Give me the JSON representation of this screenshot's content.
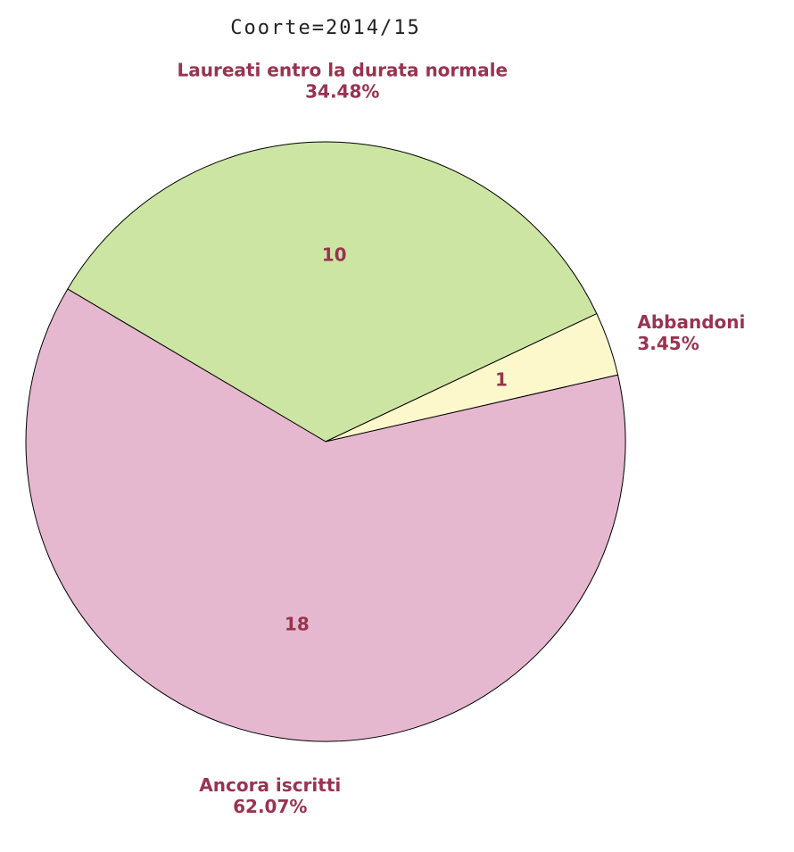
{
  "chart_data": {
    "type": "pie",
    "title": "Coorte=2014/15",
    "categories": [
      "Laureati entro la durata normale",
      "Abbandoni",
      "Ancora iscritti"
    ],
    "values": [
      10,
      1,
      18
    ],
    "percentages": [
      34.48,
      3.45,
      62.07
    ],
    "percentage_labels": [
      "34.48%",
      "3.45%",
      "62.07%"
    ],
    "colors": [
      "#cde5a3",
      "#fdf8cc",
      "#e6b8cf"
    ]
  }
}
